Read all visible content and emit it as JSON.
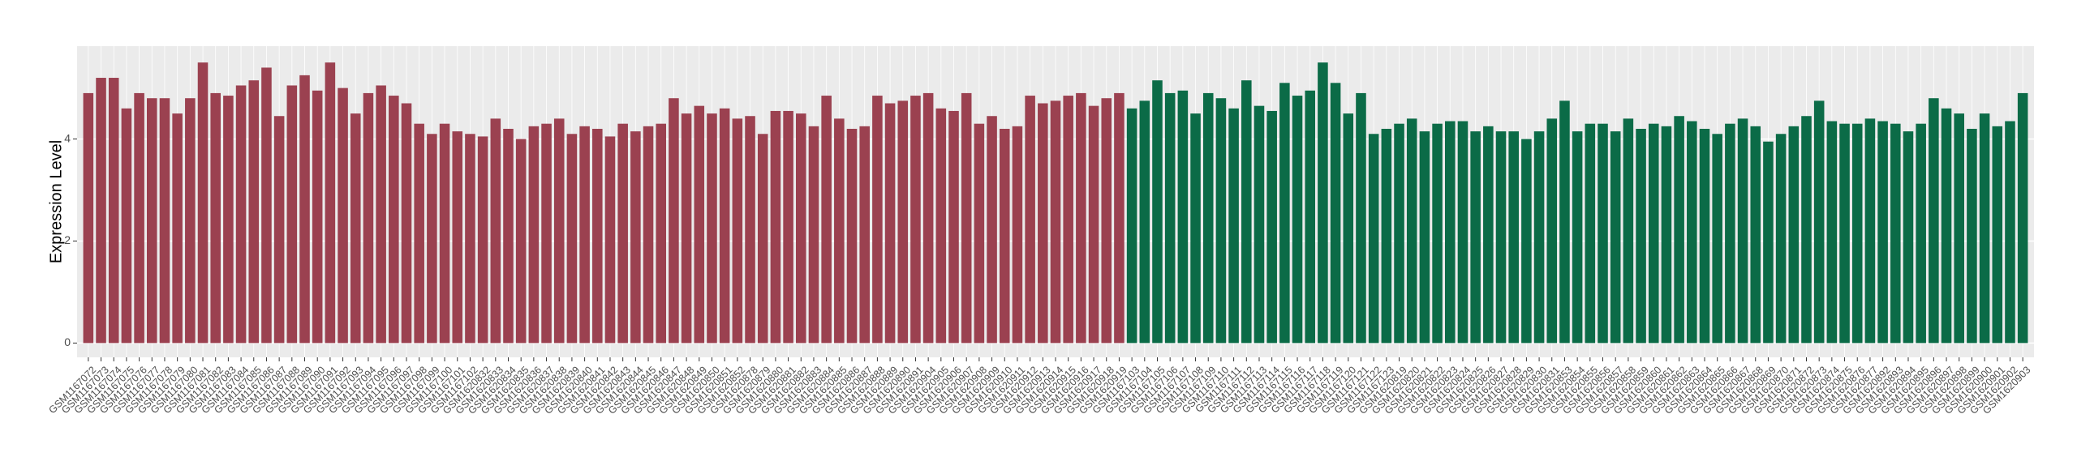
{
  "chart_data": {
    "type": "bar",
    "y_label": "Expression Level",
    "categories": [
      "GSM1167072",
      "GSM1167073",
      "GSM1167074",
      "GSM1167075",
      "GSM1167076",
      "GSM1167077",
      "GSM1167078",
      "GSM1167079",
      "GSM1167080",
      "GSM1167081",
      "GSM1167082",
      "GSM1167083",
      "GSM1167084",
      "GSM1167085",
      "GSM1167086",
      "GSM1167087",
      "GSM1167088",
      "GSM1167089",
      "GSM1167090",
      "GSM1167091",
      "GSM1167092",
      "GSM1167093",
      "GSM1167094",
      "GSM1167095",
      "GSM1167096",
      "GSM1167097",
      "GSM1167098",
      "GSM1167099",
      "GSM1167100",
      "GSM1167101",
      "GSM1167102",
      "GSM1620832",
      "GSM1620833",
      "GSM1620834",
      "GSM1620835",
      "GSM1620836",
      "GSM1620837",
      "GSM1620838",
      "GSM1620839",
      "GSM1620840",
      "GSM1620841",
      "GSM1620842",
      "GSM1620843",
      "GSM1620844",
      "GSM1620845",
      "GSM1620846",
      "GSM1620847",
      "GSM1620848",
      "GSM1620849",
      "GSM1620850",
      "GSM1620851",
      "GSM1620852",
      "GSM1620878",
      "GSM1620879",
      "GSM1620880",
      "GSM1620881",
      "GSM1620882",
      "GSM1620883",
      "GSM1620884",
      "GSM1620885",
      "GSM1620886",
      "GSM1620887",
      "GSM1620888",
      "GSM1620889",
      "GSM1620890",
      "GSM1620891",
      "GSM1620904",
      "GSM1620905",
      "GSM1620906",
      "GSM1620907",
      "GSM1620908",
      "GSM1620909",
      "GSM1620910",
      "GSM1620911",
      "GSM1620912",
      "GSM1620913",
      "GSM1620914",
      "GSM1620915",
      "GSM1620916",
      "GSM1620917",
      "GSM1620918",
      "GSM1620919",
      "GSM1167103",
      "GSM1167104",
      "GSM1167105",
      "GSM1167106",
      "GSM1167107",
      "GSM1167108",
      "GSM1167109",
      "GSM1167110",
      "GSM1167111",
      "GSM1167112",
      "GSM1167113",
      "GSM1167114",
      "GSM1167115",
      "GSM1167116",
      "GSM1167117",
      "GSM1167118",
      "GSM1167119",
      "GSM1167120",
      "GSM1167121",
      "GSM1167122",
      "GSM1167123",
      "GSM1620819",
      "GSM1620820",
      "GSM1620821",
      "GSM1620822",
      "GSM1620823",
      "GSM1620824",
      "GSM1620825",
      "GSM1620826",
      "GSM1620827",
      "GSM1620828",
      "GSM1620829",
      "GSM1620830",
      "GSM1620831",
      "GSM1620853",
      "GSM1620854",
      "GSM1620855",
      "GSM1620856",
      "GSM1620857",
      "GSM1620858",
      "GSM1620859",
      "GSM1620860",
      "GSM1620861",
      "GSM1620862",
      "GSM1620863",
      "GSM1620864",
      "GSM1620865",
      "GSM1620866",
      "GSM1620867",
      "GSM1620868",
      "GSM1620869",
      "GSM1620870",
      "GSM1620871",
      "GSM1620872",
      "GSM1620873",
      "GSM1620874",
      "GSM1620875",
      "GSM1620876",
      "GSM1620877",
      "GSM1620892",
      "GSM1620893",
      "GSM1620894",
      "GSM1620895",
      "GSM1620896",
      "GSM1620897",
      "GSM1620898",
      "GSM1620899",
      "GSM1620900",
      "GSM1620901",
      "GSM1620902",
      "GSM1620903"
    ],
    "series": [
      {
        "color": "#9b4150",
        "values": [
          4.9,
          5.2,
          5.2,
          4.6,
          4.9,
          4.8,
          4.8,
          4.5,
          4.8,
          5.5,
          4.9,
          4.85,
          5.05,
          5.15,
          5.4,
          4.45,
          5.05,
          5.25,
          4.95,
          5.5,
          5.0,
          4.5,
          4.9,
          5.05,
          4.85,
          4.7,
          4.3,
          4.1,
          4.3,
          4.15,
          4.1,
          4.05,
          4.4,
          4.2,
          4.0,
          4.25,
          4.3,
          4.4,
          4.1,
          4.25,
          4.2,
          4.05,
          4.3,
          4.15,
          4.25,
          4.3,
          4.8,
          4.5,
          4.65,
          4.5,
          4.6,
          4.4,
          4.45,
          4.1,
          4.55,
          4.55,
          4.5,
          4.25,
          4.85,
          4.4,
          4.2,
          4.25,
          4.85,
          4.7,
          4.75,
          4.85,
          4.9,
          4.6,
          4.55,
          4.9,
          4.3,
          4.45,
          4.2,
          4.25,
          4.85,
          4.7,
          4.75,
          4.85,
          4.9,
          4.65,
          4.8,
          4.9,
          null,
          null,
          null,
          null,
          null,
          null,
          null,
          null,
          null,
          null,
          null,
          null,
          null,
          null,
          null,
          null,
          null,
          null,
          null,
          null,
          null,
          null,
          null,
          null,
          null,
          null,
          null,
          null,
          null,
          null,
          null,
          null,
          null,
          null,
          null,
          null,
          null,
          null,
          null,
          null,
          null,
          null,
          null,
          null,
          null,
          null,
          null,
          null,
          null,
          null,
          null,
          null,
          null,
          null,
          null,
          null,
          null,
          null,
          null,
          null,
          null,
          null,
          null,
          null,
          null,
          null,
          null,
          null,
          null,
          null,
          null
        ]
      },
      {
        "color": "#0b6b47",
        "values": [
          null,
          null,
          null,
          null,
          null,
          null,
          null,
          null,
          null,
          null,
          null,
          null,
          null,
          null,
          null,
          null,
          null,
          null,
          null,
          null,
          null,
          null,
          null,
          null,
          null,
          null,
          null,
          null,
          null,
          null,
          null,
          null,
          null,
          null,
          null,
          null,
          null,
          null,
          null,
          null,
          null,
          null,
          null,
          null,
          null,
          null,
          null,
          null,
          null,
          null,
          null,
          null,
          null,
          null,
          null,
          null,
          null,
          null,
          null,
          null,
          null,
          null,
          null,
          null,
          null,
          null,
          null,
          null,
          null,
          null,
          null,
          null,
          null,
          null,
          null,
          null,
          null,
          null,
          null,
          null,
          null,
          null,
          4.6,
          4.75,
          5.15,
          4.9,
          4.95,
          4.5,
          4.9,
          4.8,
          4.6,
          5.15,
          4.65,
          4.55,
          5.1,
          4.85,
          4.95,
          5.5,
          5.1,
          4.5,
          4.9,
          4.1,
          4.2,
          4.3,
          4.4,
          4.15,
          4.3,
          4.35,
          4.35,
          4.15,
          4.25,
          4.15,
          4.15,
          4.0,
          4.15,
          4.4,
          4.75,
          4.15,
          4.3,
          4.3,
          4.15,
          4.4,
          4.2,
          4.3,
          4.25,
          4.45,
          4.35,
          4.2,
          4.1,
          4.3,
          4.4,
          4.25,
          3.95,
          4.1,
          4.25,
          4.45,
          4.75,
          4.35,
          4.3,
          4.3,
          4.4,
          4.35,
          4.3,
          4.15,
          4.3,
          4.8,
          4.6,
          4.5,
          4.2,
          4.5,
          4.25,
          4.35,
          4.9
        ]
      }
    ],
    "ylim": [
      -0.28,
      5.82
    ],
    "yticks": [
      0,
      2,
      4
    ],
    "grid": true
  }
}
